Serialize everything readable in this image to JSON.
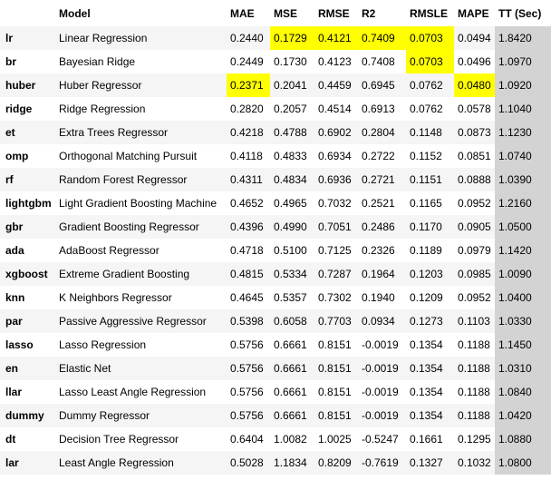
{
  "columns": {
    "index": "",
    "model": "Model",
    "mae": "MAE",
    "mse": "MSE",
    "rmse": "RMSE",
    "r2": "R2",
    "rmsle": "RMSLE",
    "mape": "MAPE",
    "tt": "TT (Sec)"
  },
  "highlight_color": "#ffff00",
  "tt_column_color": "#d3d3d3",
  "rows": [
    {
      "id": "lr",
      "model": "Linear Regression",
      "mae": "0.2440",
      "mse": "0.1729",
      "rmse": "0.4121",
      "r2": "0.7409",
      "rmsle": "0.0703",
      "mape": "0.0494",
      "tt": "1.8420",
      "hl": [
        "mse",
        "rmse",
        "r2",
        "rmsle"
      ]
    },
    {
      "id": "br",
      "model": "Bayesian Ridge",
      "mae": "0.2449",
      "mse": "0.1730",
      "rmse": "0.4123",
      "r2": "0.7408",
      "rmsle": "0.0703",
      "mape": "0.0496",
      "tt": "1.0970",
      "hl": [
        "rmsle"
      ]
    },
    {
      "id": "huber",
      "model": "Huber Regressor",
      "mae": "0.2371",
      "mse": "0.2041",
      "rmse": "0.4459",
      "r2": "0.6945",
      "rmsle": "0.0762",
      "mape": "0.0480",
      "tt": "1.0920",
      "hl": [
        "mae",
        "mape"
      ]
    },
    {
      "id": "ridge",
      "model": "Ridge Regression",
      "mae": "0.2820",
      "mse": "0.2057",
      "rmse": "0.4514",
      "r2": "0.6913",
      "rmsle": "0.0762",
      "mape": "0.0578",
      "tt": "1.1040",
      "hl": []
    },
    {
      "id": "et",
      "model": "Extra Trees Regressor",
      "mae": "0.4218",
      "mse": "0.4788",
      "rmse": "0.6902",
      "r2": "0.2804",
      "rmsle": "0.1148",
      "mape": "0.0873",
      "tt": "1.1230",
      "hl": []
    },
    {
      "id": "omp",
      "model": "Orthogonal Matching Pursuit",
      "mae": "0.4118",
      "mse": "0.4833",
      "rmse": "0.6934",
      "r2": "0.2722",
      "rmsle": "0.1152",
      "mape": "0.0851",
      "tt": "1.0740",
      "hl": []
    },
    {
      "id": "rf",
      "model": "Random Forest Regressor",
      "mae": "0.4311",
      "mse": "0.4834",
      "rmse": "0.6936",
      "r2": "0.2721",
      "rmsle": "0.1151",
      "mape": "0.0888",
      "tt": "1.0390",
      "hl": []
    },
    {
      "id": "lightgbm",
      "model": "Light Gradient Boosting Machine",
      "mae": "0.4652",
      "mse": "0.4965",
      "rmse": "0.7032",
      "r2": "0.2521",
      "rmsle": "0.1165",
      "mape": "0.0952",
      "tt": "1.2160",
      "hl": []
    },
    {
      "id": "gbr",
      "model": "Gradient Boosting Regressor",
      "mae": "0.4396",
      "mse": "0.4990",
      "rmse": "0.7051",
      "r2": "0.2486",
      "rmsle": "0.1170",
      "mape": "0.0905",
      "tt": "1.0500",
      "hl": []
    },
    {
      "id": "ada",
      "model": "AdaBoost Regressor",
      "mae": "0.4718",
      "mse": "0.5100",
      "rmse": "0.7125",
      "r2": "0.2326",
      "rmsle": "0.1189",
      "mape": "0.0979",
      "tt": "1.1420",
      "hl": []
    },
    {
      "id": "xgboost",
      "model": "Extreme Gradient Boosting",
      "mae": "0.4815",
      "mse": "0.5334",
      "rmse": "0.7287",
      "r2": "0.1964",
      "rmsle": "0.1203",
      "mape": "0.0985",
      "tt": "1.0090",
      "hl": []
    },
    {
      "id": "knn",
      "model": "K Neighbors Regressor",
      "mae": "0.4645",
      "mse": "0.5357",
      "rmse": "0.7302",
      "r2": "0.1940",
      "rmsle": "0.1209",
      "mape": "0.0952",
      "tt": "1.0400",
      "hl": []
    },
    {
      "id": "par",
      "model": "Passive Aggressive Regressor",
      "mae": "0.5398",
      "mse": "0.6058",
      "rmse": "0.7703",
      "r2": "0.0934",
      "rmsle": "0.1273",
      "mape": "0.1103",
      "tt": "1.0330",
      "hl": []
    },
    {
      "id": "lasso",
      "model": "Lasso Regression",
      "mae": "0.5756",
      "mse": "0.6661",
      "rmse": "0.8151",
      "r2": "-0.0019",
      "rmsle": "0.1354",
      "mape": "0.1188",
      "tt": "1.1450",
      "hl": []
    },
    {
      "id": "en",
      "model": "Elastic Net",
      "mae": "0.5756",
      "mse": "0.6661",
      "rmse": "0.8151",
      "r2": "-0.0019",
      "rmsle": "0.1354",
      "mape": "0.1188",
      "tt": "1.0310",
      "hl": []
    },
    {
      "id": "llar",
      "model": "Lasso Least Angle Regression",
      "mae": "0.5756",
      "mse": "0.6661",
      "rmse": "0.8151",
      "r2": "-0.0019",
      "rmsle": "0.1354",
      "mape": "0.1188",
      "tt": "1.0840",
      "hl": []
    },
    {
      "id": "dummy",
      "model": "Dummy Regressor",
      "mae": "0.5756",
      "mse": "0.6661",
      "rmse": "0.8151",
      "r2": "-0.0019",
      "rmsle": "0.1354",
      "mape": "0.1188",
      "tt": "1.0420",
      "hl": []
    },
    {
      "id": "dt",
      "model": "Decision Tree Regressor",
      "mae": "0.6404",
      "mse": "1.0082",
      "rmse": "1.0025",
      "r2": "-0.5247",
      "rmsle": "0.1661",
      "mape": "0.1295",
      "tt": "1.0880",
      "hl": []
    },
    {
      "id": "lar",
      "model": "Least Angle Regression",
      "mae": "0.5028",
      "mse": "1.1834",
      "rmse": "0.8209",
      "r2": "-0.7619",
      "rmsle": "0.1327",
      "mape": "0.1032",
      "tt": "1.0800",
      "hl": []
    }
  ]
}
